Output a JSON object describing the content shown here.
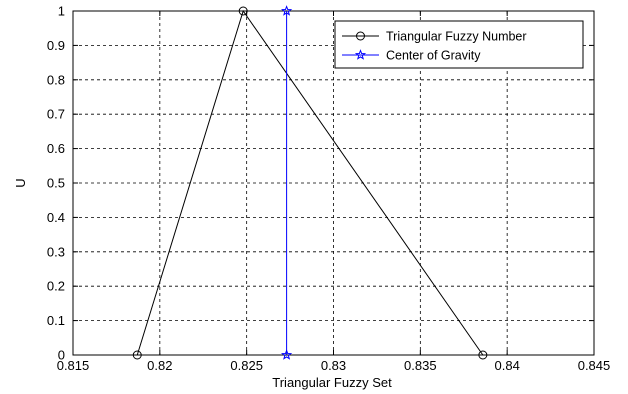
{
  "chart_data": {
    "type": "line",
    "xlabel": "Triangular Fuzzy Set",
    "ylabel": "U",
    "xlim": [
      0.815,
      0.845
    ],
    "ylim": [
      0,
      1
    ],
    "x_ticks": [
      0.815,
      0.82,
      0.825,
      0.83,
      0.835,
      0.84,
      0.845
    ],
    "x_tick_labels": [
      "0.815",
      "0.82",
      "0.825",
      "0.83",
      "0.835",
      "0.84",
      "0.845"
    ],
    "y_ticks": [
      0,
      0.1,
      0.2,
      0.3,
      0.4,
      0.5,
      0.6,
      0.7,
      0.8,
      0.9,
      1
    ],
    "y_tick_labels": [
      "0",
      "0.1",
      "0.2",
      "0.3",
      "0.4",
      "0.5",
      "0.6",
      "0.7",
      "0.8",
      "0.9",
      "1"
    ],
    "grid": true,
    "legend_position": "top-right",
    "series": [
      {
        "name": "Triangular Fuzzy Number",
        "color": "#000000",
        "marker": "circle",
        "x": [
          0.8187,
          0.8248,
          0.8386
        ],
        "y": [
          0,
          1,
          0
        ]
      },
      {
        "name": "Center of Gravity",
        "color": "#0000ff",
        "marker": "star",
        "x": [
          0.8273,
          0.8273
        ],
        "y": [
          0,
          1
        ]
      }
    ]
  }
}
